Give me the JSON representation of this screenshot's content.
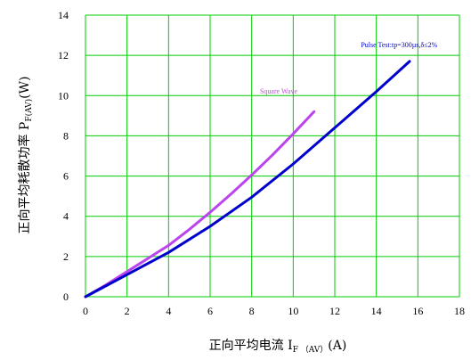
{
  "chart_data": {
    "type": "line",
    "xlabel": {
      "main": "正向平均电流 I",
      "sub": "F （AV）",
      "unit": "(A)"
    },
    "ylabel": {
      "main": "正向平均耗散功率 P",
      "sub": "F(AV)",
      "unit": "(W)"
    },
    "xlim": [
      0,
      18
    ],
    "ylim": [
      0,
      14
    ],
    "x_ticks": [
      0,
      2,
      4,
      6,
      8,
      10,
      12,
      14,
      16,
      18
    ],
    "y_ticks": [
      0,
      2,
      4,
      6,
      8,
      10,
      12,
      14
    ],
    "grid": true,
    "grid_color": "#00cc00",
    "annotations": [
      {
        "text": "Pulse Test:tp=300µs,δ≤2%",
        "x": 15.1,
        "y": 12.4,
        "color": "#0000cc"
      },
      {
        "text": "Square Wave",
        "x": 9.3,
        "y": 10.1,
        "color": "#cc44ee"
      }
    ],
    "series": [
      {
        "label_ref": "Square Wave",
        "color": "#bb44ee",
        "x": [
          0,
          1,
          2,
          3,
          4,
          5,
          6,
          7,
          8,
          9,
          10,
          11
        ],
        "y": [
          0,
          0.6,
          1.25,
          1.9,
          2.55,
          3.35,
          4.2,
          5.1,
          6.05,
          7.05,
          8.1,
          9.2
        ]
      },
      {
        "label_ref": "Pulse Test:tp=300µs,δ≤2%",
        "color": "#0000cc",
        "x": [
          0,
          2,
          4,
          6,
          8,
          10,
          12,
          14,
          15.6
        ],
        "y": [
          0,
          1.1,
          2.2,
          3.5,
          4.95,
          6.6,
          8.4,
          10.2,
          11.7
        ]
      }
    ]
  }
}
